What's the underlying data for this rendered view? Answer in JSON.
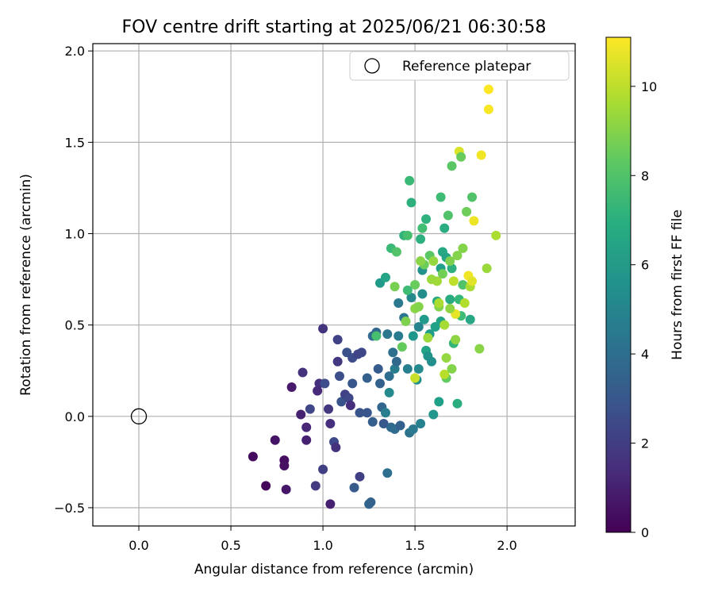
{
  "chart_data": {
    "type": "scatter",
    "title": "FOV centre drift starting at 2025/06/21 06:30:58",
    "xlabel": "Angular distance from reference (arcmin)",
    "ylabel": "Rotation from reference (arcmin)",
    "xlim": [
      -0.25,
      2.37
    ],
    "ylim": [
      -0.6,
      2.04
    ],
    "xticks": [
      "0.0",
      "0.5",
      "1.0",
      "1.5",
      "2.0"
    ],
    "yticks": [
      "−0.5",
      "0.0",
      "0.5",
      "1.0",
      "1.5",
      "2.0"
    ],
    "grid": true,
    "legend": {
      "location": "top-right",
      "entries": [
        "Reference platepar"
      ]
    },
    "reference_point": {
      "x": 0.0,
      "y": 0.0,
      "label": "Reference platepar"
    },
    "colorbar": {
      "label": "Hours from first FF file",
      "min": 0,
      "max": 11.1,
      "ticks": [
        "0",
        "2",
        "4",
        "6",
        "8",
        "10"
      ],
      "colormap": "viridis"
    },
    "points": [
      {
        "x": 0.62,
        "y": -0.22,
        "c": 0.3
      },
      {
        "x": 0.69,
        "y": -0.38,
        "c": 0.2
      },
      {
        "x": 0.74,
        "y": -0.13,
        "c": 0.6
      },
      {
        "x": 0.79,
        "y": -0.24,
        "c": 0.4
      },
      {
        "x": 0.79,
        "y": -0.27,
        "c": 0.5
      },
      {
        "x": 0.8,
        "y": -0.4,
        "c": 0.7
      },
      {
        "x": 0.83,
        "y": 0.16,
        "c": 0.8
      },
      {
        "x": 0.88,
        "y": 0.01,
        "c": 1.0
      },
      {
        "x": 0.89,
        "y": 0.24,
        "c": 1.6
      },
      {
        "x": 0.91,
        "y": -0.06,
        "c": 1.2
      },
      {
        "x": 0.91,
        "y": -0.13,
        "c": 1.0
      },
      {
        "x": 0.93,
        "y": 0.04,
        "c": 2.4
      },
      {
        "x": 0.97,
        "y": 0.14,
        "c": 1.3
      },
      {
        "x": 0.98,
        "y": 0.18,
        "c": 1.5
      },
      {
        "x": 0.96,
        "y": -0.38,
        "c": 1.9
      },
      {
        "x": 1.0,
        "y": 0.48,
        "c": 1.7
      },
      {
        "x": 1.0,
        "y": -0.29,
        "c": 2.1
      },
      {
        "x": 1.01,
        "y": 0.18,
        "c": 2.6
      },
      {
        "x": 1.03,
        "y": 0.04,
        "c": 1.8
      },
      {
        "x": 1.04,
        "y": -0.04,
        "c": 1.5
      },
      {
        "x": 1.04,
        "y": -0.48,
        "c": 1.0
      },
      {
        "x": 1.06,
        "y": -0.14,
        "c": 2.5
      },
      {
        "x": 1.07,
        "y": -0.17,
        "c": 1.6
      },
      {
        "x": 1.08,
        "y": 0.42,
        "c": 2.2
      },
      {
        "x": 1.08,
        "y": 0.3,
        "c": 1.8
      },
      {
        "x": 1.09,
        "y": 0.22,
        "c": 2.7
      },
      {
        "x": 1.1,
        "y": 0.08,
        "c": 2.9
      },
      {
        "x": 1.12,
        "y": 0.12,
        "c": 2.2
      },
      {
        "x": 1.13,
        "y": 0.35,
        "c": 2.8
      },
      {
        "x": 1.14,
        "y": 0.1,
        "c": 2.4
      },
      {
        "x": 1.15,
        "y": 0.06,
        "c": 1.5
      },
      {
        "x": 1.16,
        "y": 0.32,
        "c": 2.6
      },
      {
        "x": 1.16,
        "y": 0.18,
        "c": 3.0
      },
      {
        "x": 1.17,
        "y": -0.39,
        "c": 3.2
      },
      {
        "x": 1.19,
        "y": 0.34,
        "c": 2.3
      },
      {
        "x": 1.2,
        "y": 0.02,
        "c": 2.9
      },
      {
        "x": 1.2,
        "y": -0.33,
        "c": 2.1
      },
      {
        "x": 1.21,
        "y": 0.35,
        "c": 2.4
      },
      {
        "x": 1.24,
        "y": 0.21,
        "c": 3.4
      },
      {
        "x": 1.24,
        "y": 0.02,
        "c": 3.0
      },
      {
        "x": 1.25,
        "y": -0.48,
        "c": 3.6
      },
      {
        "x": 1.26,
        "y": -0.47,
        "c": 3.5
      },
      {
        "x": 1.27,
        "y": 0.44,
        "c": 3.8
      },
      {
        "x": 1.27,
        "y": -0.03,
        "c": 3.3
      },
      {
        "x": 1.29,
        "y": 0.46,
        "c": 3.7
      },
      {
        "x": 1.3,
        "y": 0.26,
        "c": 3.2
      },
      {
        "x": 1.31,
        "y": 0.18,
        "c": 3.5
      },
      {
        "x": 1.32,
        "y": 0.05,
        "c": 3.6
      },
      {
        "x": 1.33,
        "y": -0.04,
        "c": 3.1
      },
      {
        "x": 1.34,
        "y": 0.02,
        "c": 4.7
      },
      {
        "x": 1.35,
        "y": 0.45,
        "c": 4.4
      },
      {
        "x": 1.35,
        "y": -0.31,
        "c": 4.0
      },
      {
        "x": 1.36,
        "y": 0.13,
        "c": 5.3
      },
      {
        "x": 1.36,
        "y": 0.22,
        "c": 4.0
      },
      {
        "x": 1.37,
        "y": -0.06,
        "c": 3.8
      },
      {
        "x": 1.38,
        "y": 0.35,
        "c": 4.1
      },
      {
        "x": 1.39,
        "y": 0.26,
        "c": 4.6
      },
      {
        "x": 1.39,
        "y": -0.07,
        "c": 3.9
      },
      {
        "x": 1.4,
        "y": 0.3,
        "c": 3.7
      },
      {
        "x": 1.41,
        "y": 0.62,
        "c": 4.5
      },
      {
        "x": 1.41,
        "y": 0.44,
        "c": 4.6
      },
      {
        "x": 1.42,
        "y": -0.05,
        "c": 3.4
      },
      {
        "x": 1.43,
        "y": 0.38,
        "c": 8.4
      },
      {
        "x": 1.44,
        "y": 0.54,
        "c": 4.3
      },
      {
        "x": 1.46,
        "y": 0.26,
        "c": 4.8
      },
      {
        "x": 1.47,
        "y": -0.09,
        "c": 4.2
      },
      {
        "x": 1.49,
        "y": -0.07,
        "c": 4.5
      },
      {
        "x": 1.48,
        "y": 0.65,
        "c": 5.2
      },
      {
        "x": 1.49,
        "y": 0.44,
        "c": 5.8
      },
      {
        "x": 1.5,
        "y": 0.59,
        "c": 9.1
      },
      {
        "x": 1.51,
        "y": 0.2,
        "c": 5.5
      },
      {
        "x": 1.52,
        "y": 0.49,
        "c": 5.0
      },
      {
        "x": 1.52,
        "y": 0.26,
        "c": 5.3
      },
      {
        "x": 1.53,
        "y": -0.04,
        "c": 4.9
      },
      {
        "x": 1.54,
        "y": 0.67,
        "c": 5.4
      },
      {
        "x": 1.54,
        "y": 0.8,
        "c": 5.6
      },
      {
        "x": 1.55,
        "y": 0.53,
        "c": 6.0
      },
      {
        "x": 1.56,
        "y": 0.36,
        "c": 6.4
      },
      {
        "x": 1.57,
        "y": 0.33,
        "c": 5.7
      },
      {
        "x": 1.58,
        "y": 0.45,
        "c": 6.1
      },
      {
        "x": 1.59,
        "y": 0.3,
        "c": 5.5
      },
      {
        "x": 1.6,
        "y": 0.01,
        "c": 5.8
      },
      {
        "x": 1.61,
        "y": 0.49,
        "c": 6.3
      },
      {
        "x": 1.62,
        "y": 0.63,
        "c": 6.7
      },
      {
        "x": 1.63,
        "y": 0.08,
        "c": 6.2
      },
      {
        "x": 1.64,
        "y": 0.52,
        "c": 6.4
      },
      {
        "x": 1.64,
        "y": 0.81,
        "c": 6.2
      },
      {
        "x": 1.65,
        "y": 0.9,
        "c": 6.6
      },
      {
        "x": 1.66,
        "y": 1.03,
        "c": 6.9
      },
      {
        "x": 1.67,
        "y": 0.87,
        "c": 6.5
      },
      {
        "x": 1.69,
        "y": 0.64,
        "c": 6.8
      },
      {
        "x": 1.7,
        "y": 0.81,
        "c": 7.0
      },
      {
        "x": 1.71,
        "y": 0.4,
        "c": 7.3
      },
      {
        "x": 1.73,
        "y": 0.07,
        "c": 6.9
      },
      {
        "x": 1.74,
        "y": 0.64,
        "c": 7.4
      },
      {
        "x": 1.75,
        "y": 0.55,
        "c": 7.6
      },
      {
        "x": 1.76,
        "y": 0.72,
        "c": 8.0
      },
      {
        "x": 1.8,
        "y": 0.53,
        "c": 6.6
      },
      {
        "x": 1.81,
        "y": 1.2,
        "c": 8.0
      },
      {
        "x": 1.31,
        "y": 0.73,
        "c": 6.0
      },
      {
        "x": 1.34,
        "y": 0.76,
        "c": 6.5
      },
      {
        "x": 1.37,
        "y": 0.92,
        "c": 7.5
      },
      {
        "x": 1.39,
        "y": 0.71,
        "c": 8.8
      },
      {
        "x": 1.4,
        "y": 0.9,
        "c": 8.0
      },
      {
        "x": 1.44,
        "y": 0.99,
        "c": 7.2
      },
      {
        "x": 1.46,
        "y": 0.99,
        "c": 7.8
      },
      {
        "x": 1.47,
        "y": 1.29,
        "c": 7.5
      },
      {
        "x": 1.48,
        "y": 1.17,
        "c": 7.0
      },
      {
        "x": 1.5,
        "y": 0.72,
        "c": 8.5
      },
      {
        "x": 1.52,
        "y": 0.6,
        "c": 9.0
      },
      {
        "x": 1.53,
        "y": 0.97,
        "c": 7.0
      },
      {
        "x": 1.54,
        "y": 1.03,
        "c": 7.7
      },
      {
        "x": 1.55,
        "y": 0.83,
        "c": 8.6
      },
      {
        "x": 1.56,
        "y": 1.08,
        "c": 7.1
      },
      {
        "x": 1.58,
        "y": 0.88,
        "c": 8.2
      },
      {
        "x": 1.6,
        "y": 0.85,
        "c": 9.3
      },
      {
        "x": 1.62,
        "y": 0.74,
        "c": 9.5
      },
      {
        "x": 1.63,
        "y": 0.6,
        "c": 9.0
      },
      {
        "x": 1.64,
        "y": 1.2,
        "c": 7.6
      },
      {
        "x": 1.65,
        "y": 0.78,
        "c": 8.7
      },
      {
        "x": 1.66,
        "y": 0.5,
        "c": 9.6
      },
      {
        "x": 1.67,
        "y": 0.32,
        "c": 9.3
      },
      {
        "x": 1.68,
        "y": 1.1,
        "c": 8.0
      },
      {
        "x": 1.69,
        "y": 0.85,
        "c": 8.9
      },
      {
        "x": 1.7,
        "y": 1.37,
        "c": 8.2
      },
      {
        "x": 1.71,
        "y": 0.74,
        "c": 10.0
      },
      {
        "x": 1.72,
        "y": 0.42,
        "c": 9.2
      },
      {
        "x": 1.72,
        "y": 0.56,
        "c": 10.7
      },
      {
        "x": 1.73,
        "y": 0.88,
        "c": 9.0
      },
      {
        "x": 1.74,
        "y": 1.45,
        "c": 10.5
      },
      {
        "x": 1.75,
        "y": 1.42,
        "c": 8.5
      },
      {
        "x": 1.76,
        "y": 0.92,
        "c": 9.0
      },
      {
        "x": 1.77,
        "y": 0.62,
        "c": 9.8
      },
      {
        "x": 1.78,
        "y": 1.12,
        "c": 8.6
      },
      {
        "x": 1.79,
        "y": 0.77,
        "c": 10.9
      },
      {
        "x": 1.8,
        "y": 0.71,
        "c": 9.7
      },
      {
        "x": 1.81,
        "y": 0.74,
        "c": 10.6
      },
      {
        "x": 1.82,
        "y": 1.07,
        "c": 10.8
      },
      {
        "x": 1.85,
        "y": 0.37,
        "c": 9.1
      },
      {
        "x": 1.86,
        "y": 1.43,
        "c": 10.9
      },
      {
        "x": 1.89,
        "y": 0.81,
        "c": 9.4
      },
      {
        "x": 1.9,
        "y": 1.68,
        "c": 11.0
      },
      {
        "x": 1.9,
        "y": 1.79,
        "c": 11.1
      },
      {
        "x": 1.94,
        "y": 0.99,
        "c": 9.7
      },
      {
        "x": 1.29,
        "y": 0.44,
        "c": 7.8
      },
      {
        "x": 1.45,
        "y": 0.52,
        "c": 8.9
      },
      {
        "x": 1.57,
        "y": 0.43,
        "c": 9.4
      },
      {
        "x": 1.67,
        "y": 0.21,
        "c": 8.4
      },
      {
        "x": 1.5,
        "y": 0.21,
        "c": 10.2
      },
      {
        "x": 1.66,
        "y": 0.23,
        "c": 9.9
      },
      {
        "x": 1.59,
        "y": 0.75,
        "c": 9.4
      },
      {
        "x": 1.53,
        "y": 0.85,
        "c": 9.1
      },
      {
        "x": 1.69,
        "y": 0.59,
        "c": 9.2
      },
      {
        "x": 1.63,
        "y": 0.62,
        "c": 9.7
      },
      {
        "x": 1.7,
        "y": 0.26,
        "c": 9.0
      },
      {
        "x": 1.46,
        "y": 0.69,
        "c": 7.6
      }
    ]
  }
}
